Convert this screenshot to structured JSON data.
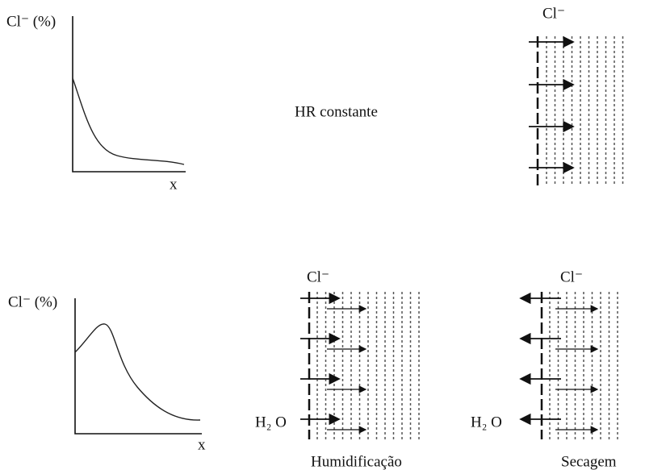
{
  "top": {
    "graph": {
      "y_label": "Cl⁻ (%)",
      "x_label": "x"
    },
    "condition": "HR constante",
    "ion": "Cl⁻"
  },
  "bottom": {
    "graph": {
      "y_label": "Cl⁻ (%)",
      "x_label": "x"
    },
    "wetting": {
      "ion": "Cl⁻",
      "water": "H₂ O",
      "caption": "Humidificação"
    },
    "drying": {
      "ion": "Cl⁻",
      "water": "H₂ O",
      "caption": "Secagem"
    }
  }
}
